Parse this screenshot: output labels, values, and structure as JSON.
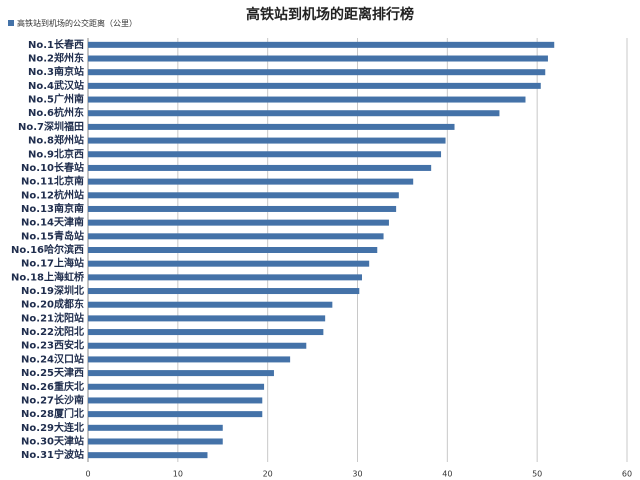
{
  "chart_data": {
    "type": "hbar",
    "title": "高铁站到机场的距离排行榜",
    "categories": [
      "No.1长春西",
      "No.2郑州东",
      "No.3南京站",
      "No.4武汉站",
      "No.5广州南",
      "No.6杭州东",
      "No.7深圳福田",
      "No.8郑州站",
      "No.9北京西",
      "No.10长春站",
      "No.11北京南",
      "No.12杭州站",
      "No.13南京南",
      "No.14天津南",
      "No.15青岛站",
      "No.16哈尔滨西",
      "No.17上海站",
      "No.18上海虹桥",
      "No.19深圳北",
      "No.20成都东",
      "No.21沈阳站",
      "No.22沈阳北",
      "No.23西安北",
      "No.24汉口站",
      "No.25天津西",
      "No.26重庆北",
      "No.27长沙南",
      "No.28厦门北",
      "No.29大连北",
      "No.30天津站",
      "No.31宁波站"
    ],
    "series": [
      {
        "name": "高铁站到机场的公交距离（公里）",
        "color": "#4472a8",
        "values": [
          51.9,
          51.2,
          50.9,
          50.4,
          48.7,
          45.8,
          40.8,
          39.8,
          39.3,
          38.2,
          36.2,
          34.6,
          34.3,
          33.5,
          32.9,
          32.2,
          31.3,
          30.5,
          30.2,
          27.2,
          26.4,
          26.2,
          24.3,
          22.5,
          20.7,
          19.6,
          19.4,
          19.4,
          15.0,
          15.0,
          13.3
        ]
      }
    ],
    "xlim": [
      0,
      60
    ],
    "xticks": [
      0,
      10,
      20,
      30,
      40,
      50,
      60
    ],
    "grid": true,
    "legend": "top-left"
  }
}
